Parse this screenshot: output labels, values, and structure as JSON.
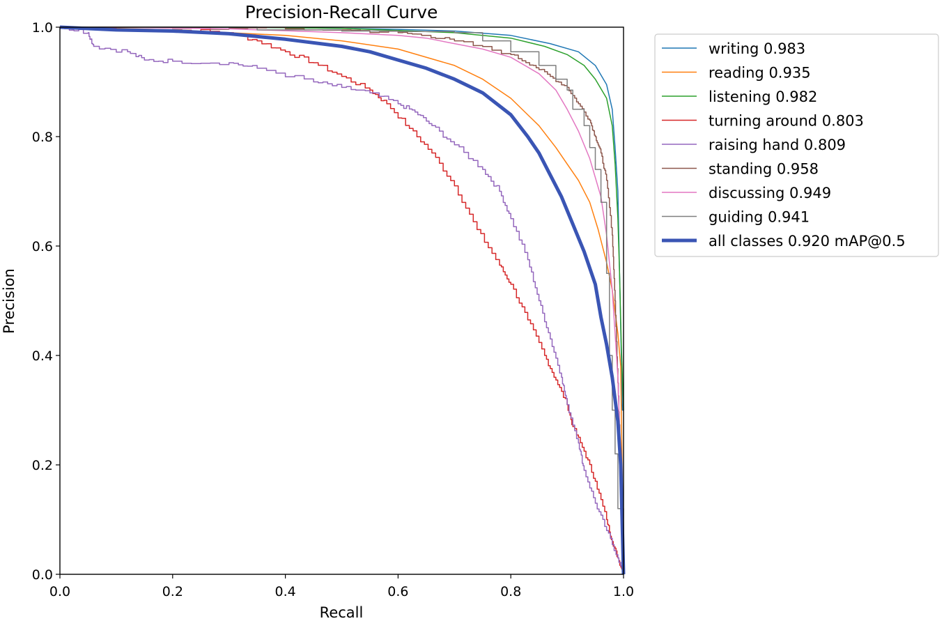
{
  "chart_data": {
    "type": "line",
    "title": "Precision-Recall Curve",
    "xlabel": "Recall",
    "ylabel": "Precision",
    "xlim": [
      0,
      1
    ],
    "ylim": [
      0,
      1
    ],
    "xticks": [
      "0.0",
      "0.2",
      "0.4",
      "0.6",
      "0.8",
      "1.0"
    ],
    "yticks": [
      "0.0",
      "0.2",
      "0.4",
      "0.6",
      "0.8",
      "1.0"
    ],
    "grid": false,
    "legend_position": "outside-right",
    "series": [
      {
        "name": "writing",
        "label": "writing 0.983",
        "color": "#1f77b4",
        "width": 1.5,
        "points": [
          [
            0,
            1
          ],
          [
            0.1,
            1
          ],
          [
            0.3,
            1
          ],
          [
            0.5,
            0.998
          ],
          [
            0.6,
            0.996
          ],
          [
            0.7,
            0.993
          ],
          [
            0.8,
            0.985
          ],
          [
            0.87,
            0.97
          ],
          [
            0.92,
            0.955
          ],
          [
            0.95,
            0.93
          ],
          [
            0.97,
            0.895
          ],
          [
            0.98,
            0.85
          ],
          [
            0.985,
            0.78
          ],
          [
            0.99,
            0.7
          ],
          [
            0.993,
            0.55
          ],
          [
            0.996,
            0.4
          ],
          [
            0.998,
            0.3
          ],
          [
            1,
            0.3
          ]
        ]
      },
      {
        "name": "reading",
        "label": "reading 0.935",
        "color": "#ff7f0e",
        "width": 1.5,
        "points": [
          [
            0,
            1
          ],
          [
            0.1,
            0.998
          ],
          [
            0.2,
            0.995
          ],
          [
            0.3,
            0.99
          ],
          [
            0.4,
            0.985
          ],
          [
            0.5,
            0.975
          ],
          [
            0.6,
            0.96
          ],
          [
            0.7,
            0.93
          ],
          [
            0.75,
            0.905
          ],
          [
            0.8,
            0.87
          ],
          [
            0.85,
            0.82
          ],
          [
            0.88,
            0.78
          ],
          [
            0.9,
            0.75
          ],
          [
            0.92,
            0.72
          ],
          [
            0.94,
            0.68
          ],
          [
            0.955,
            0.63
          ],
          [
            0.97,
            0.57
          ],
          [
            0.98,
            0.52
          ],
          [
            0.99,
            0.44
          ],
          [
            0.995,
            0.38
          ],
          [
            1,
            0.0
          ]
        ]
      },
      {
        "name": "listening",
        "label": "listening 0.982",
        "color": "#2ca02c",
        "width": 1.5,
        "points": [
          [
            0,
            1
          ],
          [
            0.1,
            1
          ],
          [
            0.3,
            1
          ],
          [
            0.5,
            0.998
          ],
          [
            0.6,
            0.994
          ],
          [
            0.7,
            0.99
          ],
          [
            0.8,
            0.98
          ],
          [
            0.86,
            0.965
          ],
          [
            0.9,
            0.95
          ],
          [
            0.93,
            0.93
          ],
          [
            0.95,
            0.905
          ],
          [
            0.97,
            0.87
          ],
          [
            0.98,
            0.82
          ],
          [
            0.985,
            0.75
          ],
          [
            0.99,
            0.65
          ],
          [
            0.993,
            0.55
          ],
          [
            0.996,
            0.42
          ],
          [
            1,
            0.3
          ]
        ]
      },
      {
        "name": "turning around",
        "label": "turning around 0.803",
        "color": "#d62728",
        "width": 1.5,
        "jitter": 0.004,
        "points": [
          [
            0,
            1
          ],
          [
            0.2,
            0.995
          ],
          [
            0.3,
            0.99
          ],
          [
            0.35,
            0.975
          ],
          [
            0.4,
            0.955
          ],
          [
            0.45,
            0.935
          ],
          [
            0.5,
            0.91
          ],
          [
            0.55,
            0.885
          ],
          [
            0.58,
            0.86
          ],
          [
            0.62,
            0.815
          ],
          [
            0.66,
            0.77
          ],
          [
            0.7,
            0.71
          ],
          [
            0.74,
            0.63
          ],
          [
            0.78,
            0.565
          ],
          [
            0.8,
            0.53
          ],
          [
            0.83,
            0.465
          ],
          [
            0.86,
            0.4
          ],
          [
            0.88,
            0.355
          ],
          [
            0.9,
            0.31
          ],
          [
            0.91,
            0.27
          ],
          [
            0.93,
            0.225
          ],
          [
            0.95,
            0.17
          ],
          [
            0.97,
            0.1
          ],
          [
            0.98,
            0.06
          ],
          [
            0.99,
            0.03
          ],
          [
            1,
            0
          ]
        ]
      },
      {
        "name": "raising hand",
        "label": "raising hand 0.809",
        "color": "#9467bd",
        "width": 1.5,
        "jitter": 0.004,
        "points": [
          [
            0,
            1
          ],
          [
            0.05,
            0.99
          ],
          [
            0.06,
            0.965
          ],
          [
            0.12,
            0.955
          ],
          [
            0.15,
            0.94
          ],
          [
            0.2,
            0.938
          ],
          [
            0.3,
            0.935
          ],
          [
            0.35,
            0.925
          ],
          [
            0.45,
            0.9
          ],
          [
            0.5,
            0.89
          ],
          [
            0.55,
            0.88
          ],
          [
            0.6,
            0.86
          ],
          [
            0.63,
            0.845
          ],
          [
            0.66,
            0.82
          ],
          [
            0.7,
            0.785
          ],
          [
            0.75,
            0.74
          ],
          [
            0.78,
            0.7
          ],
          [
            0.8,
            0.65
          ],
          [
            0.83,
            0.575
          ],
          [
            0.85,
            0.5
          ],
          [
            0.87,
            0.43
          ],
          [
            0.89,
            0.36
          ],
          [
            0.9,
            0.31
          ],
          [
            0.92,
            0.24
          ],
          [
            0.93,
            0.19
          ],
          [
            0.95,
            0.13
          ],
          [
            0.97,
            0.08
          ],
          [
            0.99,
            0.03
          ],
          [
            1,
            0
          ]
        ]
      },
      {
        "name": "standing",
        "label": "standing 0.958",
        "color": "#8c564b",
        "width": 1.5,
        "jitter": 0.003,
        "points": [
          [
            0,
            1
          ],
          [
            0.1,
            1
          ],
          [
            0.3,
            0.998
          ],
          [
            0.5,
            0.995
          ],
          [
            0.6,
            0.99
          ],
          [
            0.65,
            0.985
          ],
          [
            0.7,
            0.975
          ],
          [
            0.8,
            0.95
          ],
          [
            0.84,
            0.93
          ],
          [
            0.87,
            0.91
          ],
          [
            0.9,
            0.89
          ],
          [
            0.92,
            0.86
          ],
          [
            0.94,
            0.83
          ],
          [
            0.95,
            0.8
          ],
          [
            0.96,
            0.77
          ],
          [
            0.97,
            0.72
          ],
          [
            0.98,
            0.62
          ],
          [
            0.985,
            0.5
          ],
          [
            0.99,
            0.35
          ],
          [
            0.995,
            0.2
          ],
          [
            1,
            0
          ]
        ]
      },
      {
        "name": "discussing",
        "label": "discussing 0.949",
        "color": "#e377c2",
        "width": 1.5,
        "points": [
          [
            0,
            1
          ],
          [
            0.1,
            1
          ],
          [
            0.3,
            0.997
          ],
          [
            0.5,
            0.99
          ],
          [
            0.6,
            0.985
          ],
          [
            0.65,
            0.98
          ],
          [
            0.7,
            0.97
          ],
          [
            0.75,
            0.96
          ],
          [
            0.8,
            0.945
          ],
          [
            0.85,
            0.915
          ],
          [
            0.88,
            0.885
          ],
          [
            0.9,
            0.85
          ],
          [
            0.92,
            0.81
          ],
          [
            0.94,
            0.76
          ],
          [
            0.96,
            0.69
          ],
          [
            0.97,
            0.62
          ],
          [
            0.98,
            0.52
          ],
          [
            0.99,
            0.36
          ],
          [
            0.995,
            0.2
          ],
          [
            1,
            0
          ]
        ]
      },
      {
        "name": "guiding",
        "label": "guiding 0.941",
        "color": "#7f7f7f",
        "width": 1.5,
        "step": true,
        "points": [
          [
            0,
            1
          ],
          [
            0.35,
            0.995
          ],
          [
            0.5,
            0.993
          ],
          [
            0.6,
            0.992
          ],
          [
            0.7,
            0.99
          ],
          [
            0.75,
            0.975
          ],
          [
            0.8,
            0.955
          ],
          [
            0.85,
            0.93
          ],
          [
            0.88,
            0.905
          ],
          [
            0.9,
            0.885
          ],
          [
            0.91,
            0.85
          ],
          [
            0.93,
            0.82
          ],
          [
            0.94,
            0.78
          ],
          [
            0.95,
            0.74
          ],
          [
            0.96,
            0.68
          ],
          [
            0.97,
            0.55
          ],
          [
            0.975,
            0.4
          ],
          [
            0.98,
            0.3
          ],
          [
            0.985,
            0.22
          ],
          [
            0.99,
            0.12
          ],
          [
            1,
            0
          ]
        ]
      },
      {
        "name": "all classes",
        "label": "all classes 0.920 mAP@0.5",
        "color": "#3a55b4",
        "width": 5,
        "points": [
          [
            0,
            1
          ],
          [
            0.1,
            0.995
          ],
          [
            0.2,
            0.993
          ],
          [
            0.3,
            0.988
          ],
          [
            0.4,
            0.978
          ],
          [
            0.5,
            0.965
          ],
          [
            0.55,
            0.955
          ],
          [
            0.6,
            0.94
          ],
          [
            0.65,
            0.925
          ],
          [
            0.7,
            0.905
          ],
          [
            0.75,
            0.88
          ],
          [
            0.8,
            0.84
          ],
          [
            0.83,
            0.8
          ],
          [
            0.85,
            0.77
          ],
          [
            0.87,
            0.73
          ],
          [
            0.89,
            0.69
          ],
          [
            0.91,
            0.64
          ],
          [
            0.93,
            0.59
          ],
          [
            0.95,
            0.53
          ],
          [
            0.96,
            0.47
          ],
          [
            0.97,
            0.42
          ],
          [
            0.98,
            0.36
          ],
          [
            0.99,
            0.28
          ],
          [
            0.995,
            0.2
          ],
          [
            1,
            0
          ]
        ]
      }
    ]
  }
}
